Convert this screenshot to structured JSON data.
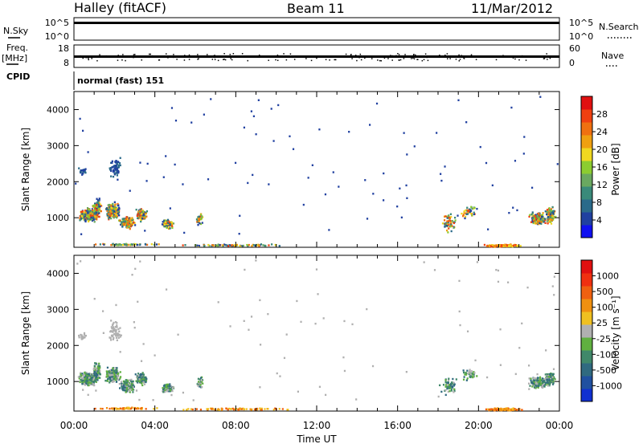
{
  "header": {
    "left_title": "Halley (fitACF)",
    "center_title": "Beam 11",
    "right_title": "11/Mar/2012"
  },
  "strip": {
    "nsky_label": "N.Sky",
    "nsearch_label": "N.Search",
    "nsky_ticks": [
      "10^5",
      "10^0"
    ],
    "nsearch_ticks": [
      "10^5",
      "10^0"
    ],
    "freq_label": "Freq.",
    "freq_unit": "[MHz]",
    "freq_ticks": [
      "18",
      "8"
    ],
    "nave_label": "Nave",
    "nave_ticks": [
      "60",
      "0"
    ],
    "cpid_label": "CPID",
    "cpid_value": "normal (fast) 151"
  },
  "chart_data": [
    {
      "type": "heatmap",
      "ylabel": "Slant Range [km]",
      "y_ticks": [
        "1000",
        "2000",
        "3000",
        "4000"
      ],
      "ylim": [
        180,
        4500
      ],
      "x_ticks": [
        "00:00",
        "04:00",
        "08:00",
        "12:00",
        "16:00",
        "20:00",
        "00:00"
      ],
      "xlim": [
        0,
        24
      ],
      "colorbar": {
        "label": "Power [dB]",
        "ticks": [
          "4",
          "8",
          "12",
          "16",
          "20",
          "24",
          "28"
        ],
        "colors": [
          "#1010f0",
          "#2040a0",
          "#2a6a8a",
          "#3a8a7a",
          "#6aa860",
          "#8ccc30",
          "#f0d820",
          "#f0a010",
          "#f07010",
          "#f04010",
          "#e01010"
        ]
      }
    },
    {
      "type": "heatmap",
      "ylabel": "Slant Range [km]",
      "y_ticks": [
        "1000",
        "2000",
        "3000",
        "4000"
      ],
      "ylim": [
        180,
        4500
      ],
      "x_ticks": [
        "00:00",
        "04:00",
        "08:00",
        "12:00",
        "16:00",
        "20:00",
        "00:00"
      ],
      "xlim": [
        0,
        24
      ],
      "xlabel": "Time UT",
      "colorbar": {
        "label": "Velocity [m s⁻¹]",
        "ticks": [
          "1000",
          "500",
          "100",
          "25",
          "-25",
          "-100",
          "-500",
          "-1000"
        ],
        "colors": [
          "#1030d0",
          "#2050a0",
          "#306a80",
          "#40886a",
          "#60b040",
          "#b0b0b0",
          "#f0c020",
          "#f09010",
          "#f06010",
          "#f03010",
          "#e01010"
        ]
      }
    }
  ]
}
